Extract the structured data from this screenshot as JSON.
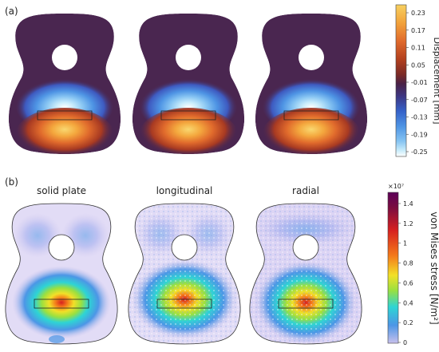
{
  "panel_a": {
    "label": "(a)",
    "colorbar": {
      "title": "Displacement [mm]",
      "ticks": [
        "0.23",
        "0.17",
        "0.11",
        "0.05",
        "-0.01",
        "-0.07",
        "-0.13",
        "-0.19",
        "-0.25"
      ],
      "colors": [
        "#f7d060",
        "#f2a23a",
        "#e06a2c",
        "#b2401e",
        "#7a2a26",
        "#4a2146",
        "#3e3580",
        "#3561c8",
        "#4e94e4",
        "#86c4f2",
        "#c8ecfb",
        "#ffffff"
      ]
    }
  },
  "panel_b": {
    "label": "(b)",
    "titles": [
      "solid plate",
      "longitudinal",
      "radial"
    ],
    "colorbar": {
      "title": "von Mises stress [N/m²]",
      "exponent": "×10⁷",
      "ticks": [
        "1.4",
        "1.2",
        "1",
        "0.8",
        "0.6",
        "0.4",
        "0.2",
        "0"
      ],
      "gradient": [
        "#c8c0ec",
        "#4c96e6",
        "#2ed4d4",
        "#9ae040",
        "#f2e028",
        "#f47a1a",
        "#d62020",
        "#7a0c40",
        "#5c0058"
      ]
    }
  }
}
